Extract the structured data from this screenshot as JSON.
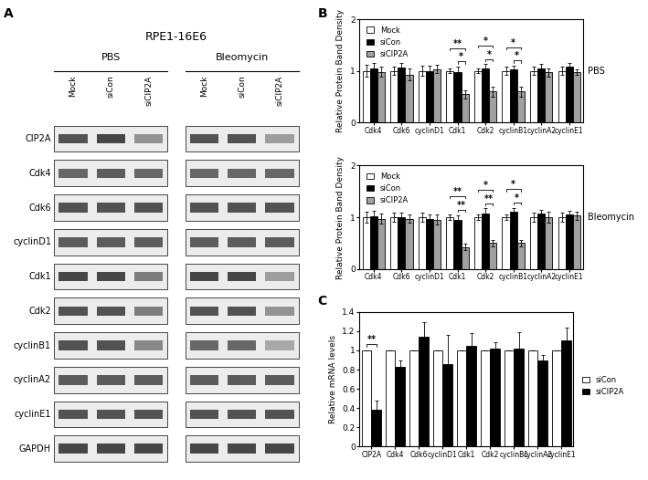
{
  "panel_labels": [
    "A",
    "B",
    "C"
  ],
  "blot": {
    "title": "RPE1-16E6",
    "lanes": [
      "Mock",
      "siCon",
      "siCIP2A"
    ],
    "rows": [
      "CIP2A",
      "Cdk4",
      "Cdk6",
      "cyclinD1",
      "Cdk1",
      "Cdk2",
      "cyclinB1",
      "cyclinA2",
      "cyclinE1",
      "GAPDH"
    ],
    "groups": [
      {
        "name": "PBS",
        "band_darkness": [
          [
            0.8,
            0.85,
            0.5
          ],
          [
            0.7,
            0.75,
            0.7
          ],
          [
            0.8,
            0.8,
            0.8
          ],
          [
            0.75,
            0.75,
            0.75
          ],
          [
            0.85,
            0.85,
            0.6
          ],
          [
            0.8,
            0.8,
            0.6
          ],
          [
            0.8,
            0.8,
            0.55
          ],
          [
            0.75,
            0.75,
            0.75
          ],
          [
            0.8,
            0.8,
            0.8
          ],
          [
            0.85,
            0.85,
            0.85
          ]
        ]
      },
      {
        "name": "Bleomycin",
        "band_darkness": [
          [
            0.8,
            0.8,
            0.45
          ],
          [
            0.7,
            0.7,
            0.7
          ],
          [
            0.8,
            0.8,
            0.8
          ],
          [
            0.75,
            0.75,
            0.75
          ],
          [
            0.85,
            0.85,
            0.45
          ],
          [
            0.8,
            0.8,
            0.5
          ],
          [
            0.7,
            0.7,
            0.4
          ],
          [
            0.75,
            0.75,
            0.75
          ],
          [
            0.8,
            0.8,
            0.8
          ],
          [
            0.85,
            0.85,
            0.85
          ]
        ]
      }
    ]
  },
  "chart_data": [
    {
      "type": "bar",
      "y_label": "Relative Protein Band Density",
      "annotation": "PBS",
      "categories": [
        "Cdk4",
        "Cdk6",
        "cyclinD1",
        "Cdk1",
        "Cdk2",
        "cyclinB1",
        "cyclinA2",
        "cyclinE1"
      ],
      "series": [
        {
          "name": "Mock",
          "color": "#ffffff",
          "values": [
            1,
            1,
            1,
            1,
            1,
            1,
            1,
            1
          ],
          "errors": [
            0.12,
            0.08,
            0.1,
            0.05,
            0.05,
            0.08,
            0.08,
            0.08
          ]
        },
        {
          "name": "siCon",
          "color": "#000000",
          "values": [
            1.05,
            1.07,
            1.0,
            0.98,
            1.05,
            1.02,
            1.05,
            1.08
          ],
          "errors": [
            0.1,
            0.08,
            0.1,
            0.1,
            0.08,
            0.08,
            0.08,
            0.08
          ]
        },
        {
          "name": "siCIP2A",
          "color": "#a0a0a0",
          "values": [
            0.98,
            0.93,
            1.03,
            0.55,
            0.6,
            0.6,
            0.97,
            0.97
          ],
          "errors": [
            0.1,
            0.12,
            0.08,
            0.08,
            0.1,
            0.1,
            0.08,
            0.05
          ]
        }
      ],
      "significance": [
        {
          "category": "Cdk1",
          "from": "Mock",
          "to": "siCIP2A",
          "label": "**"
        },
        {
          "category": "Cdk1",
          "from": "siCon",
          "to": "siCIP2A",
          "label": "*"
        },
        {
          "category": "Cdk2",
          "from": "Mock",
          "to": "siCIP2A",
          "label": "*"
        },
        {
          "category": "Cdk2",
          "from": "siCon",
          "to": "siCIP2A",
          "label": "*"
        },
        {
          "category": "cyclinB1",
          "from": "Mock",
          "to": "siCIP2A",
          "label": "*"
        },
        {
          "category": "cyclinB1",
          "from": "siCon",
          "to": "siCIP2A",
          "label": "*"
        }
      ],
      "ylim": [
        0,
        2
      ],
      "yticks": [
        0,
        1,
        2
      ],
      "legend": "upper left"
    },
    {
      "type": "bar",
      "y_label": "Relative Protein Band Density",
      "annotation": "Bleomycin",
      "categories": [
        "Cdk4",
        "Cdk6",
        "cyclinD1",
        "Cdk1",
        "Cdk2",
        "cyclinB1",
        "cyclinA2",
        "cyclinE1"
      ],
      "series": [
        {
          "name": "Mock",
          "color": "#ffffff",
          "values": [
            1,
            1,
            1,
            1,
            1,
            1,
            1,
            1
          ],
          "errors": [
            0.1,
            0.08,
            0.08,
            0.05,
            0.05,
            0.05,
            0.08,
            0.08
          ]
        },
        {
          "name": "siCon",
          "color": "#000000",
          "values": [
            1.02,
            1.0,
            0.97,
            0.95,
            1.07,
            1.1,
            1.07,
            1.05
          ],
          "errors": [
            0.1,
            0.08,
            0.08,
            0.08,
            0.1,
            0.08,
            0.08,
            0.08
          ]
        },
        {
          "name": "siCIP2A",
          "color": "#a0a0a0",
          "values": [
            0.97,
            0.97,
            0.95,
            0.42,
            0.5,
            0.5,
            1.0,
            1.03
          ],
          "errors": [
            0.1,
            0.08,
            0.1,
            0.06,
            0.06,
            0.06,
            0.1,
            0.08
          ]
        }
      ],
      "significance": [
        {
          "category": "Cdk1",
          "from": "Mock",
          "to": "siCIP2A",
          "label": "**"
        },
        {
          "category": "Cdk1",
          "from": "siCon",
          "to": "siCIP2A",
          "label": "**"
        },
        {
          "category": "Cdk2",
          "from": "Mock",
          "to": "siCIP2A",
          "label": "*"
        },
        {
          "category": "Cdk2",
          "from": "siCon",
          "to": "siCIP2A",
          "label": "**"
        },
        {
          "category": "cyclinB1",
          "from": "Mock",
          "to": "siCIP2A",
          "label": "*"
        },
        {
          "category": "cyclinB1",
          "from": "siCon",
          "to": "siCIP2A",
          "label": "*"
        }
      ],
      "ylim": [
        0,
        2
      ],
      "yticks": [
        0,
        1,
        2
      ],
      "legend": "upper left"
    },
    {
      "type": "bar",
      "y_label": "Relative mRNA levels",
      "categories": [
        "CIP2A",
        "Cdk4",
        "Cdk6",
        "cyclinD1",
        "Cdk1",
        "Cdk2",
        "cyclinB1",
        "cyclinA2",
        "cyclinE1"
      ],
      "series": [
        {
          "name": "siCon",
          "color": "#ffffff",
          "values": [
            1,
            1,
            1,
            1,
            1,
            1,
            1,
            1,
            1
          ],
          "errors": [
            0,
            0,
            0,
            0,
            0,
            0,
            0,
            0,
            0
          ]
        },
        {
          "name": "siCIP2A",
          "color": "#000000",
          "values": [
            0.38,
            0.83,
            1.14,
            0.86,
            1.05,
            1.02,
            1.02,
            0.9,
            1.1
          ],
          "errors": [
            0.1,
            0.07,
            0.15,
            0.3,
            0.13,
            0.07,
            0.17,
            0.05,
            0.14
          ]
        }
      ],
      "significance": [
        {
          "category": "CIP2A",
          "from": "siCon",
          "to": "siCIP2A",
          "label": "**"
        }
      ],
      "ylim": [
        0,
        1.4
      ],
      "yticks": [
        0,
        0.2,
        0.4,
        0.6,
        0.8,
        1,
        1.2,
        1.4
      ],
      "legend": "center right"
    }
  ]
}
